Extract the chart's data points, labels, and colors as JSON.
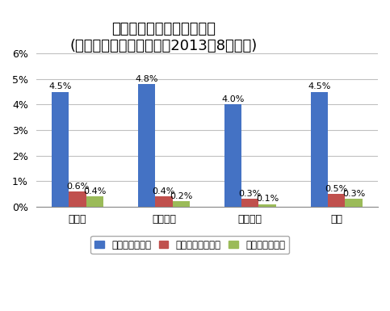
{
  "title_line1": "アレルギー疾患のり患者率",
  "title_line2": "(調査対象児童生徒数比、2013年8月時点)",
  "categories": [
    "小学校",
    "中学校等",
    "高等学校",
    "合計"
  ],
  "series_names": [
    "食物アレルギー",
    "アナフィラキシー",
    "エビペン保持者"
  ],
  "series_values": {
    "食物アレルギー": [
      4.5,
      4.8,
      4.0,
      4.5
    ],
    "アナフィラキシー": [
      0.6,
      0.4,
      0.3,
      0.5
    ],
    "エビペン保持者": [
      0.4,
      0.2,
      0.1,
      0.3
    ]
  },
  "colors": {
    "食物アレルギー": "#4472C4",
    "アナフィラキシー": "#C0504D",
    "エビペン保持者": "#9BBB59"
  },
  "ylim": [
    0,
    6
  ],
  "yticks": [
    0,
    1,
    2,
    3,
    4,
    5,
    6
  ],
  "ytick_labels": [
    "0%",
    "1%",
    "2%",
    "3%",
    "4%",
    "5%",
    "6%"
  ],
  "bar_width": 0.2,
  "background_color": "#FFFFFF",
  "grid_color": "#C0C0C0",
  "label_fontsize": 8,
  "tick_fontsize": 9,
  "legend_fontsize": 8.5,
  "title_fontsize": 13
}
